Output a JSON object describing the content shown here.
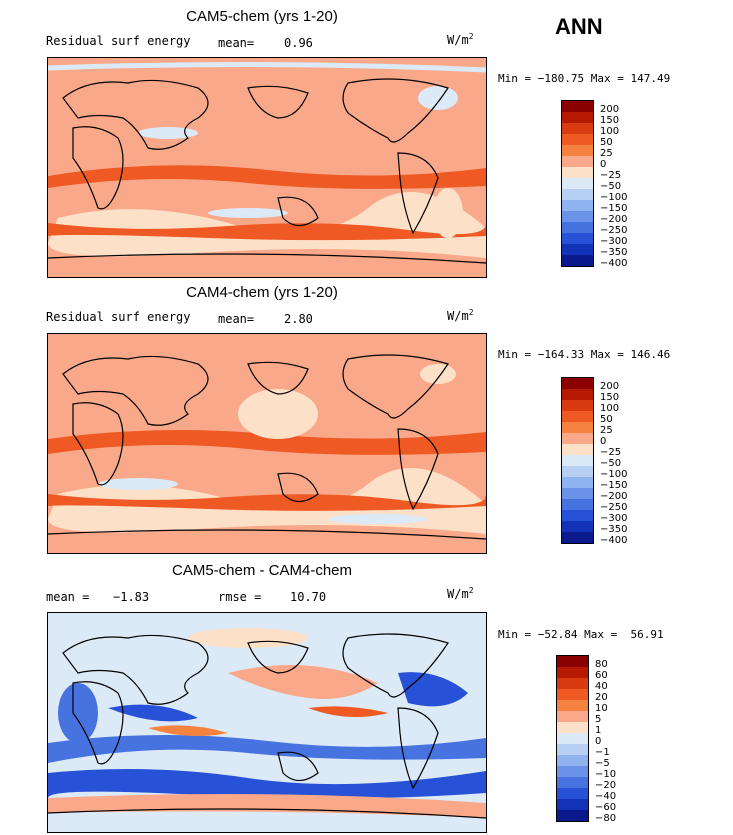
{
  "season": "ANN",
  "units_base": "W/m",
  "units_exp": "2",
  "panels": [
    {
      "title": "CAM5-chem (yrs 1-20)",
      "variable": "Residual surf energy",
      "mean_label": "mean=",
      "mean_value": "0.96",
      "minmax": "Min = −180.75 Max = 147.49",
      "levels": [
        "200",
        "150",
        "100",
        "50",
        "25",
        "0",
        "−25",
        "−50",
        "−100",
        "−150",
        "−200",
        "−250",
        "−300",
        "−350",
        "−400"
      ]
    },
    {
      "title": "CAM4-chem (yrs 1-20)",
      "variable": "Residual surf energy",
      "mean_label": "mean=",
      "mean_value": "2.80",
      "minmax": "Min = −164.33 Max = 146.46",
      "levels": [
        "200",
        "150",
        "100",
        "50",
        "25",
        "0",
        "−25",
        "−50",
        "−100",
        "−150",
        "−200",
        "−250",
        "−300",
        "−350",
        "−400"
      ]
    },
    {
      "title": "CAM5-chem - CAM4-chem",
      "mean_label": "mean =",
      "mean_value": "−1.83",
      "rmse_label": "rmse =",
      "rmse_value": "10.70",
      "minmax": "Min = −52.84 Max =  56.91",
      "levels": [
        "80",
        "60",
        "40",
        "20",
        "10",
        "5",
        "1",
        "0",
        "−1",
        "−5",
        "−10",
        "−20",
        "−40",
        "−60",
        "−80"
      ]
    }
  ],
  "colors": {
    "scale": [
      "#8b0000",
      "#b51a00",
      "#d93b10",
      "#ef5a24",
      "#f5823f",
      "#f9a98a",
      "#fde0c8",
      "#dce9f7",
      "#b6cff2",
      "#8fb3ee",
      "#6a93e8",
      "#4773e0",
      "#2751d6",
      "#1233b8",
      "#0a1a8c"
    ]
  }
}
